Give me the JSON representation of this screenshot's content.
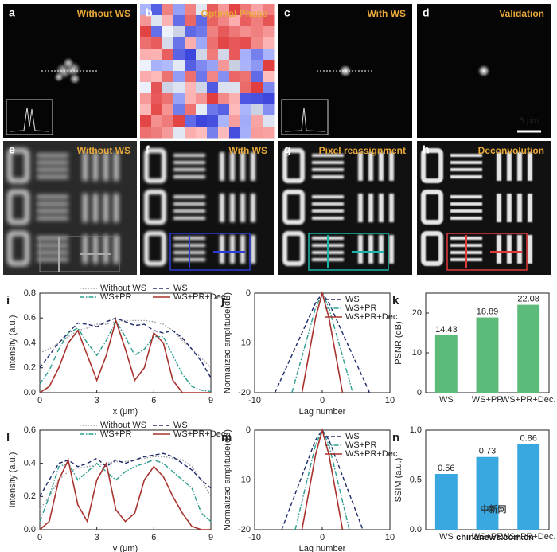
{
  "panels": [
    {
      "letter": "a",
      "title": "Without WS"
    },
    {
      "letter": "b",
      "title": "Optimal Phase"
    },
    {
      "letter": "c",
      "title": "With WS"
    },
    {
      "letter": "d",
      "title": "Validation",
      "scalebar": "5 μm"
    },
    {
      "letter": "e",
      "title": "Without WS"
    },
    {
      "letter": "f",
      "title": "With WS"
    },
    {
      "letter": "g",
      "title": "Pixel reassignment"
    },
    {
      "letter": "h",
      "title": "Deconvolution"
    }
  ],
  "watermark": {
    "title": "中新网",
    "subtitle": "chinanews.com.cn"
  },
  "chart_data": [
    {
      "type": "line",
      "label": "i",
      "xlabel": "x (μm)",
      "ylabel": "Intensity (a.u.)",
      "xlim": [
        0,
        9
      ],
      "xticks": [
        0,
        3,
        6,
        9
      ],
      "ylim": [
        0,
        0.8
      ],
      "yticks": [
        {
          "value": 0,
          "label": "0.0"
        },
        0.2,
        0.4,
        0.6,
        0.8
      ],
      "x": [
        0,
        0.5,
        1,
        1.5,
        2,
        2.5,
        3,
        3.5,
        4,
        4.5,
        5,
        5.5,
        6,
        6.5,
        7,
        7.5,
        8,
        8.5,
        9
      ],
      "series": [
        {
          "name": "Without WS",
          "color": "#999999",
          "style": "dotted",
          "values": [
            0.32,
            0.35,
            0.4,
            0.45,
            0.5,
            0.52,
            0.55,
            0.55,
            0.57,
            0.58,
            0.58,
            0.58,
            0.57,
            0.55,
            0.5,
            0.42,
            0.35,
            0.28,
            0.2
          ]
        },
        {
          "name": "WS",
          "color": "#1f2a6b",
          "style": "dashed",
          "values": [
            0.2,
            0.3,
            0.4,
            0.48,
            0.56,
            0.55,
            0.53,
            0.57,
            0.6,
            0.57,
            0.54,
            0.55,
            0.5,
            0.48,
            0.5,
            0.44,
            0.35,
            0.25,
            0.12
          ]
        },
        {
          "name": "WS+PR",
          "color": "#2a9d8f",
          "style": "dashdot",
          "values": [
            0.07,
            0.18,
            0.35,
            0.48,
            0.52,
            0.4,
            0.3,
            0.42,
            0.58,
            0.45,
            0.3,
            0.35,
            0.45,
            0.45,
            0.3,
            0.15,
            0.05,
            0.02,
            0.01
          ]
        },
        {
          "name": "WS+PR+Dec.",
          "color": "#a8322d",
          "style": "solid",
          "values": [
            0,
            0.05,
            0.2,
            0.4,
            0.5,
            0.3,
            0.1,
            0.3,
            0.58,
            0.35,
            0.1,
            0.2,
            0.48,
            0.4,
            0.1,
            0,
            0,
            0,
            0
          ]
        }
      ]
    },
    {
      "type": "line",
      "label": "j",
      "xlabel": "Lag number",
      "ylabel": "Normalized amplitude(dB)",
      "xlim": [
        -10,
        10
      ],
      "xticks": [
        -10,
        0,
        10
      ],
      "ylim": [
        -20,
        0
      ],
      "yticks": [
        -20,
        -10,
        0
      ],
      "series": [
        {
          "name": "WS",
          "color": "#1f2a6b",
          "style": "dashed",
          "x": [
            -7,
            -1,
            0,
            1,
            7
          ],
          "values": [
            -20,
            -2,
            0,
            -2,
            -20
          ]
        },
        {
          "name": "WS+PR",
          "color": "#2a9d8f",
          "style": "dashdot",
          "x": [
            -4.5,
            -1,
            0,
            1,
            4.5
          ],
          "values": [
            -20,
            -3,
            0,
            -3,
            -20
          ]
        },
        {
          "name": "WS+PR+Dec.",
          "color": "#a8322d",
          "style": "solid",
          "x": [
            -3,
            -1,
            0,
            1,
            3
          ],
          "values": [
            -20,
            -5,
            0,
            -5,
            -20
          ]
        }
      ]
    },
    {
      "type": "bar",
      "label": "k",
      "ylabel": "PSNR (dB)",
      "color": "#5dbb7a",
      "categories": [
        "WS",
        "WS+PR",
        "WS+PR+Dec."
      ],
      "values": [
        14.43,
        18.89,
        22.08
      ],
      "ylim": [
        0,
        25
      ],
      "yticks": [
        0,
        10,
        20
      ]
    },
    {
      "type": "line",
      "label": "l",
      "xlabel": "y (μm)",
      "ylabel": "Intensity (a.u.)",
      "xlim": [
        0,
        9
      ],
      "xticks": [
        0,
        3,
        6,
        9
      ],
      "ylim": [
        0,
        0.6
      ],
      "yticks": [
        {
          "value": 0,
          "label": "0.0"
        },
        0.2,
        0.4,
        0.6
      ],
      "x": [
        0,
        0.5,
        1,
        1.5,
        2,
        2.5,
        3,
        3.5,
        4,
        4.5,
        5,
        5.5,
        6,
        6.5,
        7,
        7.5,
        8,
        8.5,
        9
      ],
      "series": [
        {
          "name": "Without WS",
          "color": "#999999",
          "style": "dotted",
          "values": [
            0.12,
            0.2,
            0.3,
            0.35,
            0.37,
            0.38,
            0.39,
            0.4,
            0.41,
            0.41,
            0.42,
            0.43,
            0.44,
            0.44,
            0.43,
            0.42,
            0.38,
            0.3,
            0.2
          ]
        },
        {
          "name": "WS",
          "color": "#1f2a6b",
          "style": "dashed",
          "values": [
            0.2,
            0.3,
            0.4,
            0.42,
            0.38,
            0.4,
            0.43,
            0.38,
            0.42,
            0.4,
            0.42,
            0.44,
            0.45,
            0.46,
            0.44,
            0.4,
            0.36,
            0.3,
            0.25
          ]
        },
        {
          "name": "WS+PR",
          "color": "#2a9d8f",
          "style": "dashdot",
          "values": [
            0.05,
            0.2,
            0.38,
            0.4,
            0.3,
            0.35,
            0.4,
            0.35,
            0.3,
            0.35,
            0.38,
            0.4,
            0.42,
            0.4,
            0.35,
            0.3,
            0.25,
            0.1,
            0.05
          ]
        },
        {
          "name": "WS+PR+Dec.",
          "color": "#a8322d",
          "style": "solid",
          "values": [
            0,
            0.05,
            0.3,
            0.42,
            0.15,
            0.05,
            0.3,
            0.4,
            0.12,
            0.05,
            0.1,
            0.3,
            0.38,
            0.32,
            0.2,
            0.1,
            0.02,
            0,
            0
          ]
        }
      ]
    },
    {
      "type": "line",
      "label": "m",
      "xlabel": "Lag number",
      "ylabel": "Normalized amplitude(dB)",
      "xlim": [
        -10,
        10
      ],
      "xticks": [
        -10,
        0,
        10
      ],
      "ylim": [
        -20,
        0
      ],
      "yticks": [
        -20,
        -10,
        0
      ],
      "series": [
        {
          "name": "WS",
          "color": "#1f2a6b",
          "style": "dashed",
          "x": [
            -6,
            -1,
            0,
            1,
            6
          ],
          "values": [
            -20,
            -2,
            0,
            -2,
            -20
          ]
        },
        {
          "name": "WS+PR",
          "color": "#2a9d8f",
          "style": "dashdot",
          "x": [
            -4,
            -1,
            0,
            1,
            4
          ],
          "values": [
            -20,
            -3,
            0,
            -3,
            -20
          ]
        },
        {
          "name": "WS+PR+Dec.",
          "color": "#a8322d",
          "style": "solid",
          "x": [
            -3,
            -1,
            0,
            1,
            3
          ],
          "values": [
            -20,
            -5,
            0,
            -5,
            -20
          ]
        }
      ]
    },
    {
      "type": "bar",
      "label": "n",
      "ylabel": "SSIM (a.u.)",
      "color": "#3aa8e0",
      "categories": [
        "WS",
        "WS+PR",
        "WS+PR+Dec."
      ],
      "values": [
        0.56,
        0.73,
        0.86
      ],
      "ylim": [
        0,
        1
      ],
      "yticks": [
        {
          "value": 0,
          "label": "0.0"
        },
        0.5,
        {
          "value": 1,
          "label": "1.0"
        }
      ]
    }
  ]
}
